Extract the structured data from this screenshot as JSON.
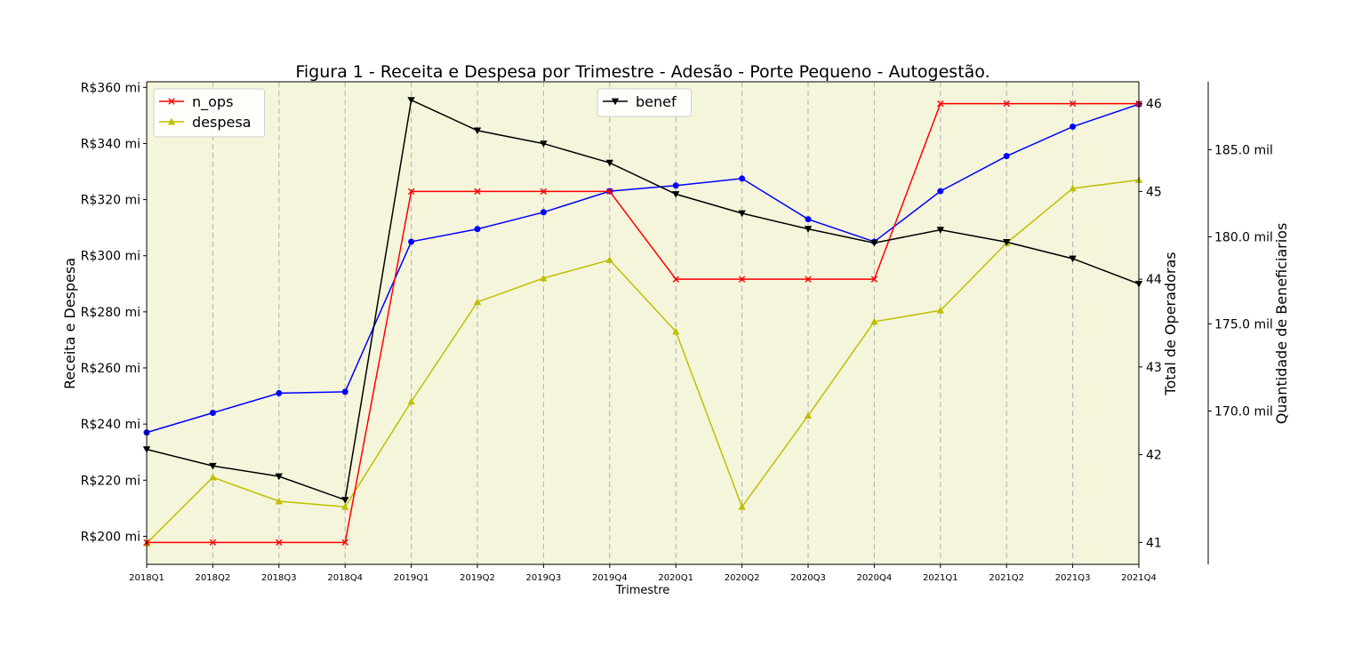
{
  "chart_data": {
    "type": "line",
    "title": "Figura 1 - Receita e Despesa por Trimestre - Adesão - Porte Pequeno - Autogestão.",
    "xlabel": "Trimestre",
    "categories": [
      "2018Q1",
      "2018Q2",
      "2018Q3",
      "2018Q4",
      "2019Q1",
      "2019Q2",
      "2019Q3",
      "2019Q4",
      "2020Q1",
      "2020Q2",
      "2020Q3",
      "2020Q4",
      "2021Q1",
      "2021Q2",
      "2021Q3",
      "2021Q4"
    ],
    "grid": "vertical dashed",
    "background": "#f5f5dc",
    "axes": {
      "left": {
        "label": "Receita e Despesa",
        "range": [
          190,
          362
        ],
        "ticks": [
          200,
          220,
          240,
          260,
          280,
          300,
          320,
          340,
          360
        ],
        "tick_labels": [
          "R$200 mi",
          "R$220 mi",
          "R$240 mi",
          "R$260 mi",
          "R$280 mi",
          "R$300 mi",
          "R$320 mi",
          "R$340 mi",
          "R$360 mi"
        ]
      },
      "right1": {
        "label": "Total de Operadoras",
        "range": [
          40.75,
          46.25
        ],
        "ticks": [
          41,
          42,
          43,
          44,
          45,
          46
        ],
        "tick_labels": [
          "41",
          "42",
          "43",
          "44",
          "45",
          "46"
        ]
      },
      "right2": {
        "label": "Quantidade de Beneficiarios",
        "range": [
          161200,
          188900
        ],
        "ticks": [
          170000,
          175000,
          180000,
          185000
        ],
        "tick_labels": [
          "170.0 mil",
          "175.0 mil",
          "180.0 mil",
          "185.0 mil"
        ]
      }
    },
    "series": [
      {
        "name": "receita",
        "axis": "left",
        "color": "#0000ff",
        "marker": "circle",
        "values": [
          237,
          244,
          251,
          251.5,
          305,
          309.5,
          315.5,
          323,
          325,
          327.5,
          313,
          305,
          323,
          335.5,
          346,
          354
        ]
      },
      {
        "name": "despesa",
        "axis": "left",
        "color": "#bfbf00",
        "marker": "triangle-up",
        "values": [
          197.5,
          221,
          212.5,
          210.5,
          248,
          283.5,
          292,
          298.5,
          273,
          210.5,
          243,
          276.5,
          280.5,
          304.5,
          324,
          327
        ]
      },
      {
        "name": "n_ops",
        "axis": "right1",
        "color": "#ff0000",
        "marker": "x",
        "values": [
          41,
          41,
          41,
          41,
          45,
          45,
          45,
          45,
          44,
          44,
          44,
          44,
          46,
          46,
          46,
          46
        ]
      },
      {
        "name": "benef",
        "axis": "right2",
        "color": "#000000",
        "marker": "triangle-down",
        "values": [
          167800,
          166850,
          166250,
          164900,
          187850,
          186100,
          185350,
          184250,
          182450,
          181350,
          180450,
          179650,
          180400,
          179700,
          178750,
          177300
        ]
      }
    ],
    "legends": [
      {
        "placement": "upper-left",
        "entries": [
          "n_ops",
          "despesa"
        ]
      },
      {
        "placement": "upper-center",
        "entries": [
          "benef"
        ]
      }
    ]
  }
}
